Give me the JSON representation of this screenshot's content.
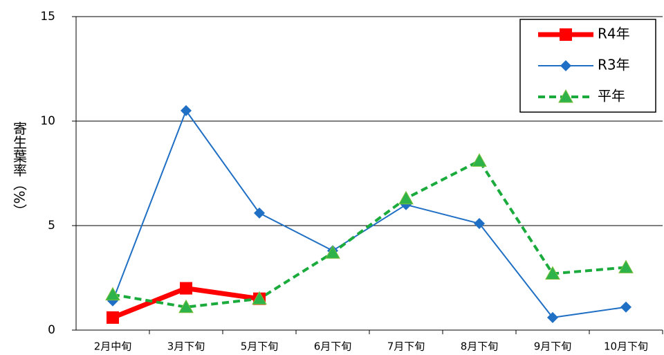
{
  "chart_data": {
    "type": "line",
    "y_label": "寄生葉率（%）",
    "categories": [
      "2月中旬",
      "3月下旬",
      "5月下旬",
      "6月下旬",
      "7月下旬",
      "8月下旬",
      "9月下旬",
      "10月下旬"
    ],
    "series": [
      {
        "name": "R4年",
        "color": "#ff0000",
        "marker": "square",
        "width": 7,
        "dashed": false,
        "values": [
          0.6,
          2.0,
          1.5,
          null,
          null,
          null,
          null,
          null
        ]
      },
      {
        "name": "R3年",
        "color": "#1f6fc5",
        "marker": "diamond",
        "width": 2,
        "dashed": false,
        "values": [
          1.4,
          10.5,
          5.6,
          3.8,
          6.0,
          5.1,
          0.6,
          1.1
        ]
      },
      {
        "name": "平年",
        "color": "#1aab3c",
        "marker": "triangle",
        "width": 4,
        "dashed": true,
        "values": [
          1.7,
          1.1,
          1.5,
          3.7,
          6.3,
          8.1,
          2.7,
          3.0
        ]
      }
    ],
    "ylim": [
      0,
      15
    ],
    "yticks": [
      0,
      5,
      10,
      15
    ],
    "grid": true,
    "legend": "top-right"
  }
}
